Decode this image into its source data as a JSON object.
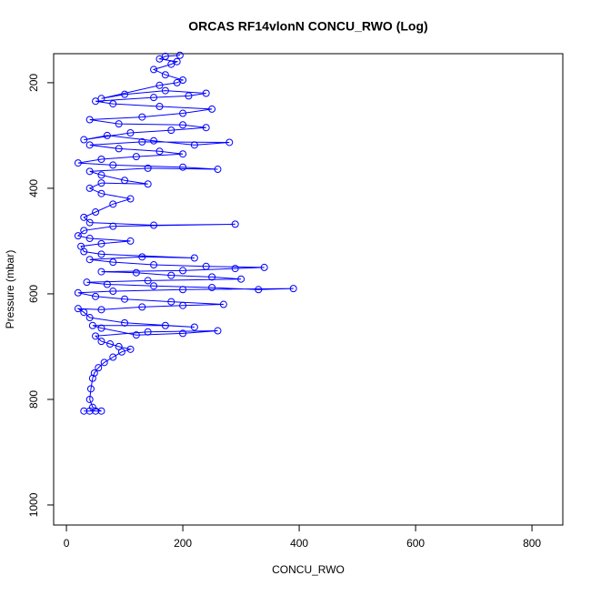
{
  "chart_data": {
    "type": "line-scatter",
    "title": "ORCAS RF14vlonN CONCU_RWO (Log)",
    "x_label": "CONCU_RWO",
    "y_label": "Pressure (mbar)",
    "xlim": [
      -22,
      853
    ],
    "xticks": [
      0,
      200,
      400,
      600,
      800
    ],
    "ylim": [
      1038,
      145
    ],
    "yticks": [
      200,
      400,
      600,
      800,
      1000
    ],
    "color": "#0000ff",
    "x": [
      30,
      40,
      50,
      60,
      45,
      40,
      42,
      45,
      48,
      55,
      65,
      80,
      95,
      110,
      90,
      75,
      60,
      50,
      140,
      260,
      200,
      120,
      60,
      45,
      170,
      220,
      100,
      40,
      30,
      20,
      60,
      130,
      200,
      270,
      180,
      100,
      50,
      20,
      80,
      200,
      390,
      330,
      250,
      150,
      70,
      35,
      140,
      300,
      250,
      180,
      120,
      60,
      200,
      290,
      340,
      240,
      150,
      80,
      40,
      130,
      220,
      60,
      30,
      25,
      60,
      110,
      40,
      20,
      30,
      80,
      290,
      150,
      40,
      30,
      50,
      80,
      110,
      60,
      40,
      60,
      140,
      100,
      60,
      40,
      140,
      260,
      200,
      80,
      20,
      60,
      120,
      200,
      160,
      90,
      40,
      130,
      280,
      220,
      150,
      70,
      30,
      110,
      180,
      240,
      200,
      90,
      40,
      130,
      200,
      250,
      160,
      80,
      50,
      150,
      210,
      240,
      170,
      100,
      60,
      160,
      190,
      200,
      170,
      150,
      180,
      190,
      160,
      170,
      195
    ],
    "y": [
      822,
      822,
      822,
      822,
      815,
      800,
      780,
      760,
      750,
      740,
      730,
      720,
      710,
      705,
      700,
      695,
      690,
      680,
      672,
      670,
      675,
      678,
      665,
      660,
      660,
      663,
      655,
      645,
      635,
      628,
      630,
      625,
      622,
      620,
      615,
      610,
      605,
      598,
      595,
      592,
      590,
      592,
      588,
      585,
      582,
      578,
      575,
      572,
      568,
      565,
      560,
      558,
      556,
      552,
      550,
      548,
      545,
      540,
      535,
      530,
      532,
      525,
      520,
      510,
      505,
      500,
      495,
      490,
      480,
      472,
      468,
      470,
      465,
      455,
      445,
      430,
      420,
      410,
      400,
      390,
      392,
      385,
      375,
      368,
      362,
      364,
      360,
      356,
      352,
      345,
      340,
      335,
      330,
      325,
      318,
      312,
      313,
      318,
      310,
      300,
      308,
      295,
      290,
      285,
      280,
      278,
      270,
      265,
      258,
      250,
      245,
      240,
      235,
      228,
      225,
      220,
      215,
      222,
      230,
      205,
      200,
      195,
      185,
      175,
      165,
      160,
      155,
      150,
      148
    ]
  }
}
